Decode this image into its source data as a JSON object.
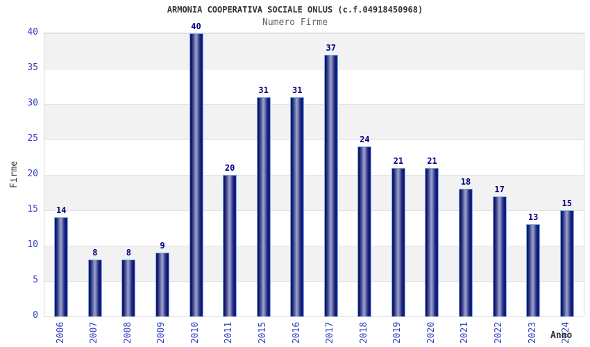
{
  "title": "ARMONIA COOPERATIVA SOCIALE ONLUS (c.f.04918450968)",
  "subtitle": "Numero Firme",
  "chart_data": {
    "type": "bar",
    "title": "ARMONIA COOPERATIVA SOCIALE ONLUS (c.f.04918450968)",
    "subtitle": "Numero Firme",
    "xlabel": "Anno",
    "ylabel": "Firme",
    "categories": [
      "2006",
      "2007",
      "2008",
      "2009",
      "2010",
      "2011",
      "2015",
      "2016",
      "2017",
      "2018",
      "2019",
      "2020",
      "2021",
      "2022",
      "2023",
      "2024"
    ],
    "values": [
      14,
      8,
      8,
      9,
      40,
      20,
      31,
      31,
      37,
      24,
      21,
      21,
      18,
      17,
      13,
      15
    ],
    "ylim": [
      0,
      40
    ],
    "yticks": [
      0,
      5,
      10,
      15,
      20,
      25,
      30,
      35,
      40
    ],
    "grid": "horizontal alternating bands every 5 units, gray/white, faint lines at band edges",
    "legend": "none",
    "value_labels": "above each bar, bold navy",
    "colors": {
      "bar_dark": "#10105e",
      "bar_light": "#9aa2d0",
      "bar_outline": "#74b2e4",
      "bar_right_edge": "#2626c8",
      "tick_label": "#3340c4",
      "value_label": "#00007d",
      "title": "#333333",
      "subtitle": "#666666",
      "band_gray": "#f2f2f2",
      "band_white": "#ffffff",
      "plot_border": "#d9d9d9",
      "axis_label": "#333333"
    }
  }
}
